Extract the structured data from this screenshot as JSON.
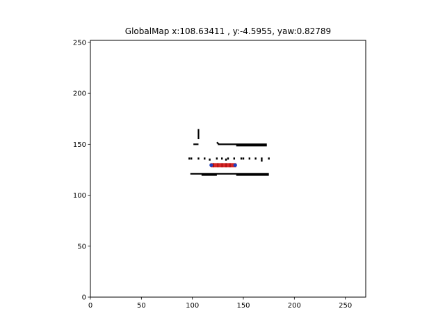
{
  "chart_data": {
    "type": "scatter",
    "title": "GlobalMap x:108.63411 , y:-4.5955, yaw:0.82789",
    "xlabel": "",
    "ylabel": "",
    "xlim": [
      0,
      270
    ],
    "ylim": [
      0,
      252
    ],
    "xticks": [
      0,
      50,
      100,
      150,
      200,
      250
    ],
    "yticks": [
      0,
      50,
      100,
      150,
      200,
      250
    ],
    "grid": false,
    "colors": {
      "obstacle": "#000000",
      "path": "#d62728",
      "robot": "#1f3fbf"
    },
    "obstacles": [
      {
        "x": [
          106,
          106
        ],
        "y": [
          165,
          155
        ]
      },
      {
        "x": [
          101,
          106
        ],
        "y": [
          150,
          150
        ]
      },
      {
        "x": [
          125,
          173
        ],
        "y": [
          150,
          150
        ]
      },
      {
        "x": [
          143,
          173
        ],
        "y": [
          148.7,
          148.7
        ]
      },
      {
        "x": [
          124,
          126
        ],
        "y": [
          152,
          150
        ]
      },
      {
        "x": [
          98,
          175
        ],
        "y": [
          121,
          121
        ]
      },
      {
        "x": [
          109,
          124
        ],
        "y": [
          119.8,
          119.8
        ]
      },
      {
        "x": [
          143,
          175
        ],
        "y": [
          119.8,
          119.8
        ]
      }
    ],
    "obstacle_points": [
      {
        "x": 97,
        "y": 136
      },
      {
        "x": 99,
        "y": 136
      },
      {
        "x": 106,
        "y": 136
      },
      {
        "x": 112,
        "y": 136
      },
      {
        "x": 117,
        "y": 135
      },
      {
        "x": 124,
        "y": 136
      },
      {
        "x": 129,
        "y": 136
      },
      {
        "x": 133,
        "y": 135
      },
      {
        "x": 135,
        "y": 136
      },
      {
        "x": 141,
        "y": 136
      },
      {
        "x": 148,
        "y": 136
      },
      {
        "x": 150,
        "y": 136
      },
      {
        "x": 156,
        "y": 136
      },
      {
        "x": 162,
        "y": 136
      },
      {
        "x": 168,
        "y": 134
      },
      {
        "x": 168,
        "y": 136
      },
      {
        "x": 175,
        "y": 136
      },
      {
        "x": 118,
        "y": 130
      },
      {
        "x": 122,
        "y": 130
      },
      {
        "x": 126,
        "y": 130
      },
      {
        "x": 130,
        "y": 130
      },
      {
        "x": 134,
        "y": 130
      },
      {
        "x": 137,
        "y": 130
      }
    ],
    "path": {
      "x": [
        118,
        143
      ],
      "y": [
        129.5,
        129.5
      ]
    },
    "path_marks": [
      {
        "x": 121,
        "y": 129.5
      },
      {
        "x": 125,
        "y": 129.5
      },
      {
        "x": 129,
        "y": 129.5
      },
      {
        "x": 133,
        "y": 129.5
      },
      {
        "x": 137,
        "y": 129.5
      }
    ],
    "robot": [
      {
        "x": 118.5,
        "y": 129.5
      },
      {
        "x": 142,
        "y": 129.5
      }
    ]
  }
}
